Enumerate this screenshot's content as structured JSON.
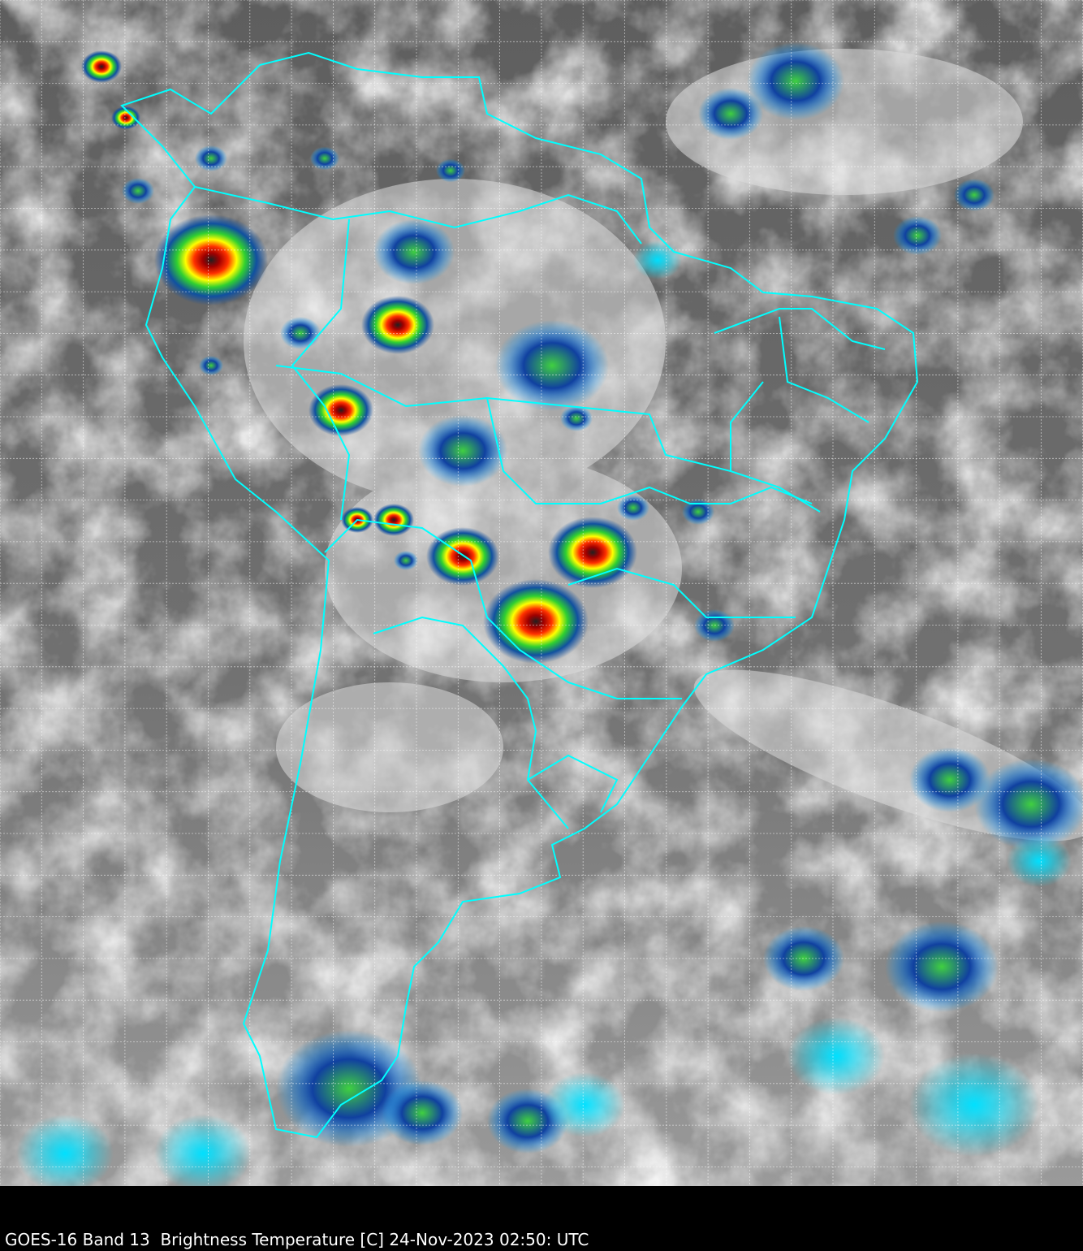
{
  "caption": "GOES-16 Band 13  Brightness Temperature [C] 24-Nov-2023 02:50: UTC",
  "map": {
    "region": "South America",
    "product": "infrared brightness temperature",
    "colors": {
      "border_lines": "#00ffff",
      "grid_lines": "#ffffff",
      "background": "#000000",
      "cold_tops": [
        "#1a3c8c",
        "#00b0ff",
        "#00ff00",
        "#ffff00",
        "#ff0000",
        "#000000",
        "#ff80c0"
      ]
    },
    "grid": true
  }
}
